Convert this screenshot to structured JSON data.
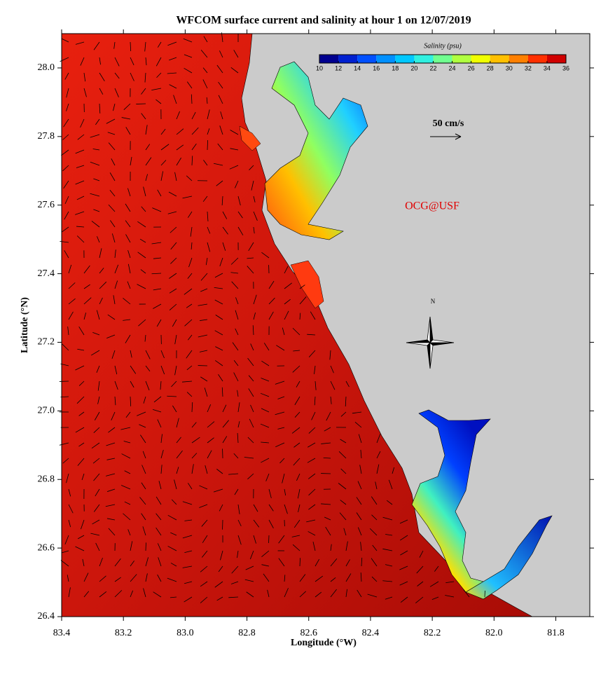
{
  "map": {
    "title": "WFCOM surface current and salinity at hour 1 on 12/07/2019",
    "x_label": "Longitude (°W)",
    "y_label": "Latitude (°N)",
    "xlim": [
      83.4,
      81.69
    ],
    "ylim": [
      26.4,
      28.1
    ],
    "xticks": [
      83.4,
      83.2,
      {
        "value": 83,
        "label": "83.0"
      },
      82.8,
      82.6,
      82.4,
      82.2,
      {
        "value": 82,
        "label": "82.0"
      },
      81.8
    ],
    "yticks": [
      26.4,
      26.6,
      26.8,
      {
        "value": 27,
        "label": "27.0"
      },
      27.2,
      27.4,
      27.6,
      27.8,
      {
        "value": 28,
        "label": "28.0"
      }
    ],
    "colorbar": {
      "title": "Salinity (psu)",
      "range": [
        10,
        36
      ],
      "ticks": [
        10,
        12,
        14,
        16,
        18,
        20,
        22,
        24,
        26,
        28,
        30,
        32,
        34,
        36
      ],
      "colors": [
        "#00008f",
        "#0020d0",
        "#0050ff",
        "#0090ff",
        "#00c8ff",
        "#30f0e0",
        "#70ff90",
        "#b0ff40",
        "#f0ff00",
        "#ffc000",
        "#ff8000",
        "#ff3000",
        "#d00000"
      ]
    },
    "scale_label": "50 cm/s",
    "credit": "OCG@USF",
    "compass_label": "N"
  }
}
